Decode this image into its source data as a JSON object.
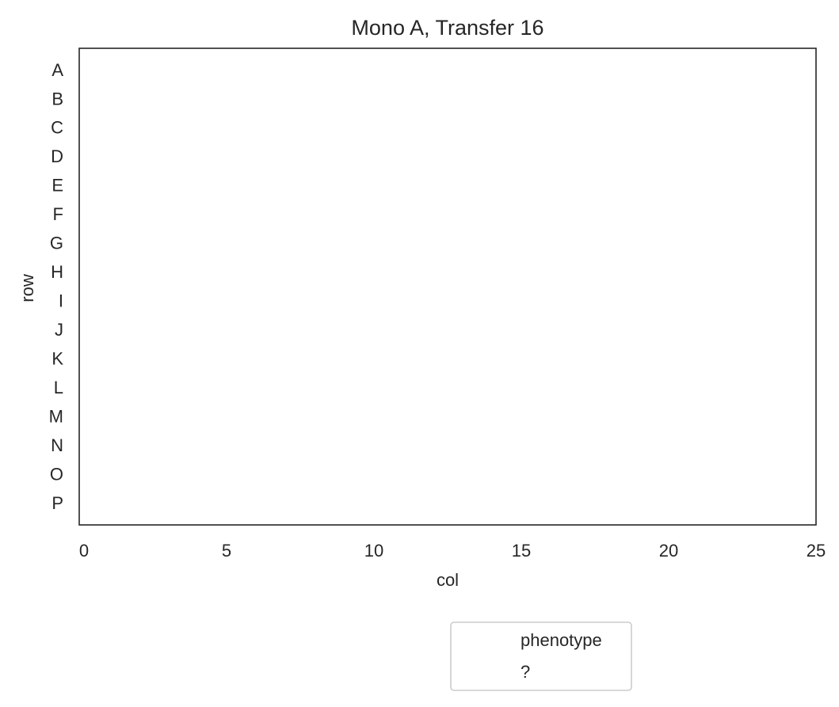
{
  "chart_data": {
    "type": "scatter",
    "title": "Mono A, Transfer 16",
    "xlabel": "col",
    "ylabel": "row",
    "xlim": [
      0,
      25
    ],
    "x_ticks": [
      "0",
      "5",
      "10",
      "15",
      "20",
      "25"
    ],
    "y_categories": [
      "A",
      "B",
      "C",
      "D",
      "E",
      "F",
      "G",
      "H",
      "I",
      "J",
      "K",
      "L",
      "M",
      "N",
      "O",
      "P"
    ],
    "series": [],
    "grid": false,
    "legend": {
      "title": "phenotype",
      "entries": [
        "?"
      ],
      "placement": "bottom-center"
    },
    "colors": {
      "axis": "#262626",
      "text": "#262626",
      "legend_border": "#cccccc"
    }
  }
}
